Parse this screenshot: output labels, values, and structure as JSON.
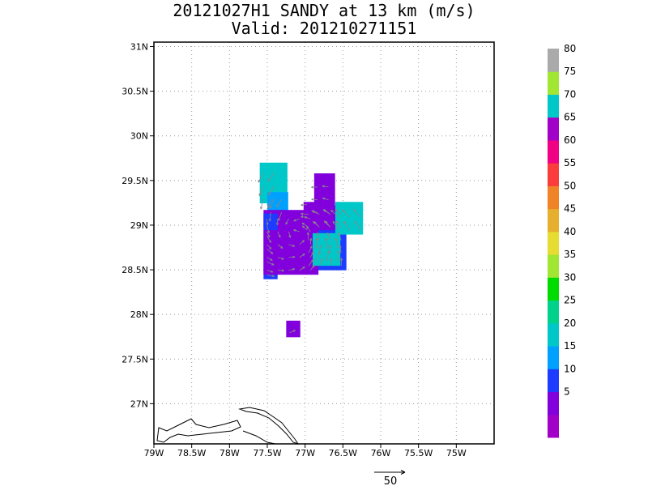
{
  "title": "20121027H1 SANDY at 13 km (m/s)",
  "subtitle": "Valid: 201210271151",
  "chart_data": {
    "type": "heatmap",
    "title": "20121027H1 SANDY at 13 km (m/s)",
    "subtitle": "Valid: 201210271151",
    "xlim": [
      -79,
      -74.5
    ],
    "ylim": [
      26.55,
      31.05
    ],
    "x_ticks": [
      -79,
      -78.5,
      -78,
      -77.5,
      -77,
      -76.5,
      -76,
      -75.5,
      -75
    ],
    "x_tick_labels": [
      "79W",
      "78.5W",
      "78W",
      "77.5W",
      "77W",
      "76.5W",
      "76W",
      "75.5W",
      "75W"
    ],
    "y_ticks": [
      27,
      27.5,
      28,
      28.5,
      29,
      29.5,
      30,
      30.5,
      31
    ],
    "y_tick_labels": [
      "27N",
      "27.5N",
      "28N",
      "28.5N",
      "29N",
      "29.5N",
      "30N",
      "30.5N",
      "31N"
    ],
    "grid": true,
    "cell_deg": 0.09,
    "colorbar": {
      "bins": [
        {
          "color": "#a000c8"
        },
        {
          "label": "5",
          "color": "#8200dc"
        },
        {
          "label": "10",
          "color": "#1e3cff"
        },
        {
          "label": "15",
          "color": "#00a0ff"
        },
        {
          "label": "20",
          "color": "#00c8c8"
        },
        {
          "label": "25",
          "color": "#00d28c"
        },
        {
          "label": "30",
          "color": "#00dc00"
        },
        {
          "label": "35",
          "color": "#a0e632"
        },
        {
          "label": "40",
          "color": "#e6dc32"
        },
        {
          "label": "45",
          "color": "#e6af2d"
        },
        {
          "label": "50",
          "color": "#f08228"
        },
        {
          "label": "55",
          "color": "#fa3c3c"
        },
        {
          "label": "60",
          "color": "#f00082"
        },
        {
          "label": "65",
          "color": "#a000c8"
        },
        {
          "label": "70",
          "color": "#00c8c8"
        },
        {
          "label": "75",
          "color": "#a0e632"
        },
        {
          "label": "80",
          "color": "#aaaaaa"
        }
      ]
    },
    "regions": [
      {
        "speed": 20,
        "lon": [
          -77.6,
          -77.3
        ],
        "lat": [
          29.25,
          29.65
        ]
      },
      {
        "speed": 15,
        "lon": [
          -77.5,
          -77.25
        ],
        "lat": [
          29.1,
          29.35
        ]
      },
      {
        "speed": 10,
        "lon": [
          -77.55,
          -77.45
        ],
        "lat": [
          28.4,
          28.9
        ]
      },
      {
        "speed": 10,
        "lon": [
          -77.0,
          -76.5
        ],
        "lat": [
          28.5,
          29.2
        ]
      },
      {
        "speed": 5,
        "lon": [
          -77.55,
          -76.85
        ],
        "lat": [
          28.45,
          29.15
        ]
      },
      {
        "speed": 5,
        "lon": [
          -76.88,
          -76.68
        ],
        "lat": [
          28.95,
          29.55
        ]
      },
      {
        "speed": 5,
        "lon": [
          -77.02,
          -76.88
        ],
        "lat": [
          28.9,
          29.25
        ]
      },
      {
        "speed": 20,
        "lon": [
          -76.6,
          -76.25
        ],
        "lat": [
          28.9,
          29.2
        ]
      },
      {
        "speed": 20,
        "lon": [
          -76.9,
          -76.55
        ],
        "lat": [
          28.55,
          28.85
        ]
      },
      {
        "speed": 10,
        "lon": [
          -77.55,
          -77.45
        ],
        "lat": [
          28.95,
          29.05
        ]
      },
      {
        "speed": 5,
        "lon": [
          -77.25,
          -77.1
        ],
        "lat": [
          27.75,
          27.85
        ]
      }
    ],
    "vector_scale": {
      "label": "50",
      "units": "m/s"
    },
    "coastline": "Grand Bahama and Abaco (Bahamas)"
  }
}
